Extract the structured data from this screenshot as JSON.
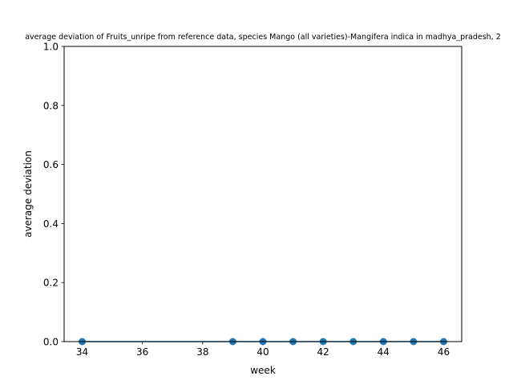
{
  "chart_data": {
    "type": "line",
    "title": "average deviation of Fruits_unripe from reference data, species Mango (all varieties)-Mangifera indica in madhya_pradesh, 2",
    "xlabel": "week",
    "ylabel": "average deviation",
    "xlim": [
      33.4,
      46.6
    ],
    "ylim": [
      0,
      1.0
    ],
    "x_ticks": [
      34,
      36,
      38,
      40,
      42,
      44,
      46
    ],
    "y_ticks": [
      0.0,
      0.2,
      0.4,
      0.6,
      0.8,
      1.0
    ],
    "x_tick_labels": [
      "34",
      "36",
      "38",
      "40",
      "42",
      "44",
      "46"
    ],
    "y_tick_labels": [
      "0.0",
      "0.2",
      "0.4",
      "0.6",
      "0.8",
      "1.0"
    ],
    "grid": false,
    "series": [
      {
        "x": [
          34,
          39,
          40,
          41,
          42,
          43,
          44,
          45,
          46
        ],
        "y": [
          0,
          0,
          0,
          0,
          0,
          0,
          0,
          0,
          0
        ],
        "color": "#1f77b4",
        "marker": "circle"
      }
    ]
  }
}
